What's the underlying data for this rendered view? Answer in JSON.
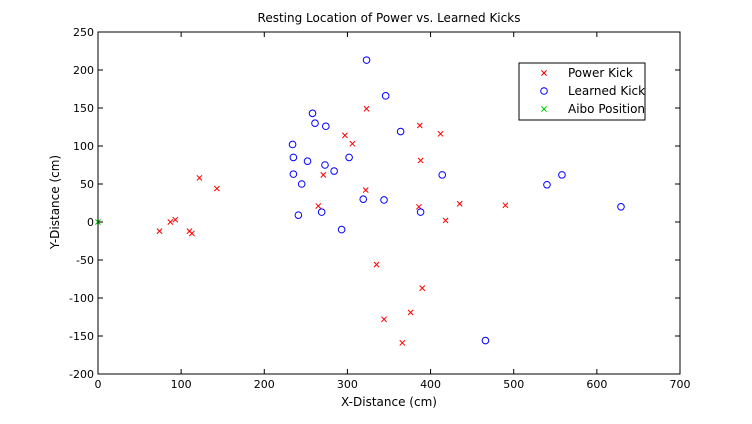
{
  "chart_data": {
    "type": "scatter",
    "title": "Resting Location of Power vs. Learned Kicks",
    "xlabel": "X-Distance (cm)",
    "ylabel": "Y-Distance (cm)",
    "xlim": [
      0,
      700
    ],
    "ylim": [
      -200,
      250
    ],
    "xticks": [
      0,
      100,
      200,
      300,
      400,
      500,
      600,
      700
    ],
    "yticks": [
      -200,
      -150,
      -100,
      -50,
      0,
      50,
      100,
      150,
      200,
      250
    ],
    "grid": false,
    "legend": "top-right",
    "series": [
      {
        "name": "Power Kick",
        "marker": "x",
        "color": "#ff0000",
        "points": [
          [
            74,
            -12
          ],
          [
            87,
            0
          ],
          [
            93,
            3
          ],
          [
            110,
            -12
          ],
          [
            113,
            -15
          ],
          [
            122,
            58
          ],
          [
            143,
            44
          ],
          [
            265,
            21
          ],
          [
            271,
            62
          ],
          [
            297,
            114
          ],
          [
            306,
            103
          ],
          [
            322,
            42
          ],
          [
            323,
            149
          ],
          [
            335,
            -56
          ],
          [
            344,
            -128
          ],
          [
            366,
            -159
          ],
          [
            376,
            -119
          ],
          [
            386,
            20
          ],
          [
            387,
            127
          ],
          [
            388,
            81
          ],
          [
            390,
            -87
          ],
          [
            412,
            116
          ],
          [
            418,
            2
          ],
          [
            435,
            24
          ],
          [
            490,
            22
          ]
        ]
      },
      {
        "name": "Learned Kick",
        "marker": "o",
        "color": "#0000ff",
        "points": [
          [
            234,
            102
          ],
          [
            235,
            85
          ],
          [
            235,
            63
          ],
          [
            241,
            9
          ],
          [
            245,
            50
          ],
          [
            252,
            80
          ],
          [
            258,
            143
          ],
          [
            261,
            130
          ],
          [
            269,
            13
          ],
          [
            273,
            75
          ],
          [
            274,
            126
          ],
          [
            284,
            67
          ],
          [
            293,
            -10
          ],
          [
            302,
            85
          ],
          [
            319,
            30
          ],
          [
            323,
            213
          ],
          [
            344,
            29
          ],
          [
            346,
            166
          ],
          [
            364,
            119
          ],
          [
            388,
            13
          ],
          [
            414,
            62
          ],
          [
            466,
            -156
          ],
          [
            540,
            49
          ],
          [
            558,
            62
          ],
          [
            629,
            20
          ]
        ]
      },
      {
        "name": "Aibo Position",
        "marker": "x",
        "color": "#00cc00",
        "points": [
          [
            0,
            0
          ]
        ]
      }
    ]
  }
}
